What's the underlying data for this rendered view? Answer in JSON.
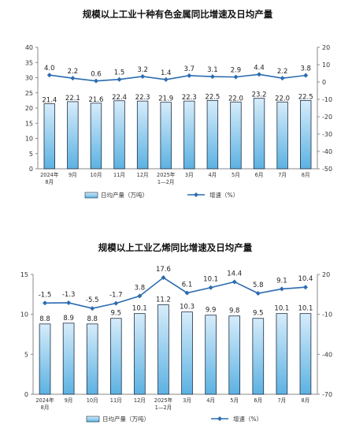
{
  "colors": {
    "bar_fill_top": "#d6ecfa",
    "bar_fill_bottom": "#5cb2e2",
    "bar_stroke": "#1f2f45",
    "line": "#2b6cb0",
    "axis": "#888888"
  },
  "chart_data": [
    {
      "type": "bar",
      "title": "规模以上工业十种有色金属同比增速及日均产量",
      "categories": [
        [
          "2024年",
          "8月"
        ],
        [
          "9月"
        ],
        [
          "10月"
        ],
        [
          "11月"
        ],
        [
          "12月"
        ],
        [
          "2025年",
          "1—2月"
        ],
        [
          "3月"
        ],
        [
          "4月"
        ],
        [
          "5月"
        ],
        [
          "6月"
        ],
        [
          "7月"
        ],
        [
          "8月"
        ]
      ],
      "series": [
        {
          "name": "日均产量（万吨）",
          "axis": "left",
          "kind": "bar",
          "values": [
            21.4,
            22.1,
            21.6,
            22.4,
            22.3,
            21.9,
            22.3,
            22.5,
            22.0,
            23.2,
            22.0,
            22.5
          ],
          "labels": [
            "21.4",
            "22.1",
            "21.6",
            "22.4",
            "22.3",
            "21.9",
            "22.3",
            "22.5",
            "22.0",
            "23.2",
            "22.0",
            "22.5"
          ]
        },
        {
          "name": "增速（%）",
          "axis": "right",
          "kind": "line",
          "values": [
            4.0,
            2.2,
            0.6,
            1.5,
            3.2,
            1.4,
            3.7,
            3.1,
            2.9,
            4.4,
            2.2,
            3.8
          ],
          "labels": [
            "4.0",
            "2.2",
            "0.6",
            "1.5",
            "3.2",
            "1.4",
            "3.7",
            "3.1",
            "2.9",
            "4.4",
            "2.2",
            "3.8"
          ]
        }
      ],
      "left_axis": {
        "ylim": [
          0,
          40
        ],
        "ticks": [
          "0",
          "5",
          "10",
          "15",
          "20",
          "25",
          "30",
          "35",
          "40"
        ]
      },
      "right_axis": {
        "ylim": [
          -50,
          20
        ],
        "ticks": [
          "-50",
          "-40",
          "-30",
          "-20",
          "-10",
          "0",
          "10",
          "20"
        ]
      },
      "legend_position": "bottom",
      "grid": false
    },
    {
      "type": "bar",
      "title": "规模以上工业乙烯同比增速及日均产量",
      "categories": [
        [
          "2024年",
          "8月"
        ],
        [
          "9月"
        ],
        [
          "10月"
        ],
        [
          "11月"
        ],
        [
          "12月"
        ],
        [
          "2025年",
          "1—2月"
        ],
        [
          "3月"
        ],
        [
          "4月"
        ],
        [
          "5月"
        ],
        [
          "6月"
        ],
        [
          "7月"
        ],
        [
          "8月"
        ]
      ],
      "series": [
        {
          "name": "日均产量（万吨）",
          "axis": "left",
          "kind": "bar",
          "values": [
            8.8,
            8.9,
            8.8,
            9.5,
            10.1,
            11.2,
            10.3,
            9.9,
            9.8,
            9.5,
            10.1,
            10.1
          ],
          "labels": [
            "8.8",
            "8.9",
            "8.8",
            "9.5",
            "10.1",
            "11.2",
            "10.3",
            "9.9",
            "9.8",
            "9.5",
            "10.1",
            "10.1"
          ]
        },
        {
          "name": "增速（%）",
          "axis": "right",
          "kind": "line",
          "values": [
            -1.5,
            -1.3,
            -5.5,
            -1.7,
            3.8,
            17.6,
            6.1,
            10.1,
            14.4,
            5.8,
            9.1,
            10.4
          ],
          "labels": [
            "-1.5",
            "-1.3",
            "-5.5",
            "-1.7",
            "3.8",
            "17.6",
            "6.1",
            "10.1",
            "14.4",
            "5.8",
            "9.1",
            "10.4"
          ]
        }
      ],
      "left_axis": {
        "ylim": [
          0,
          15
        ],
        "ticks": [
          "0",
          "5",
          "10",
          "15"
        ]
      },
      "right_axis": {
        "ylim": [
          -70,
          20
        ],
        "ticks": [
          "-70",
          "-40",
          "-10",
          "20"
        ]
      },
      "legend_position": "bottom",
      "grid": false
    }
  ]
}
